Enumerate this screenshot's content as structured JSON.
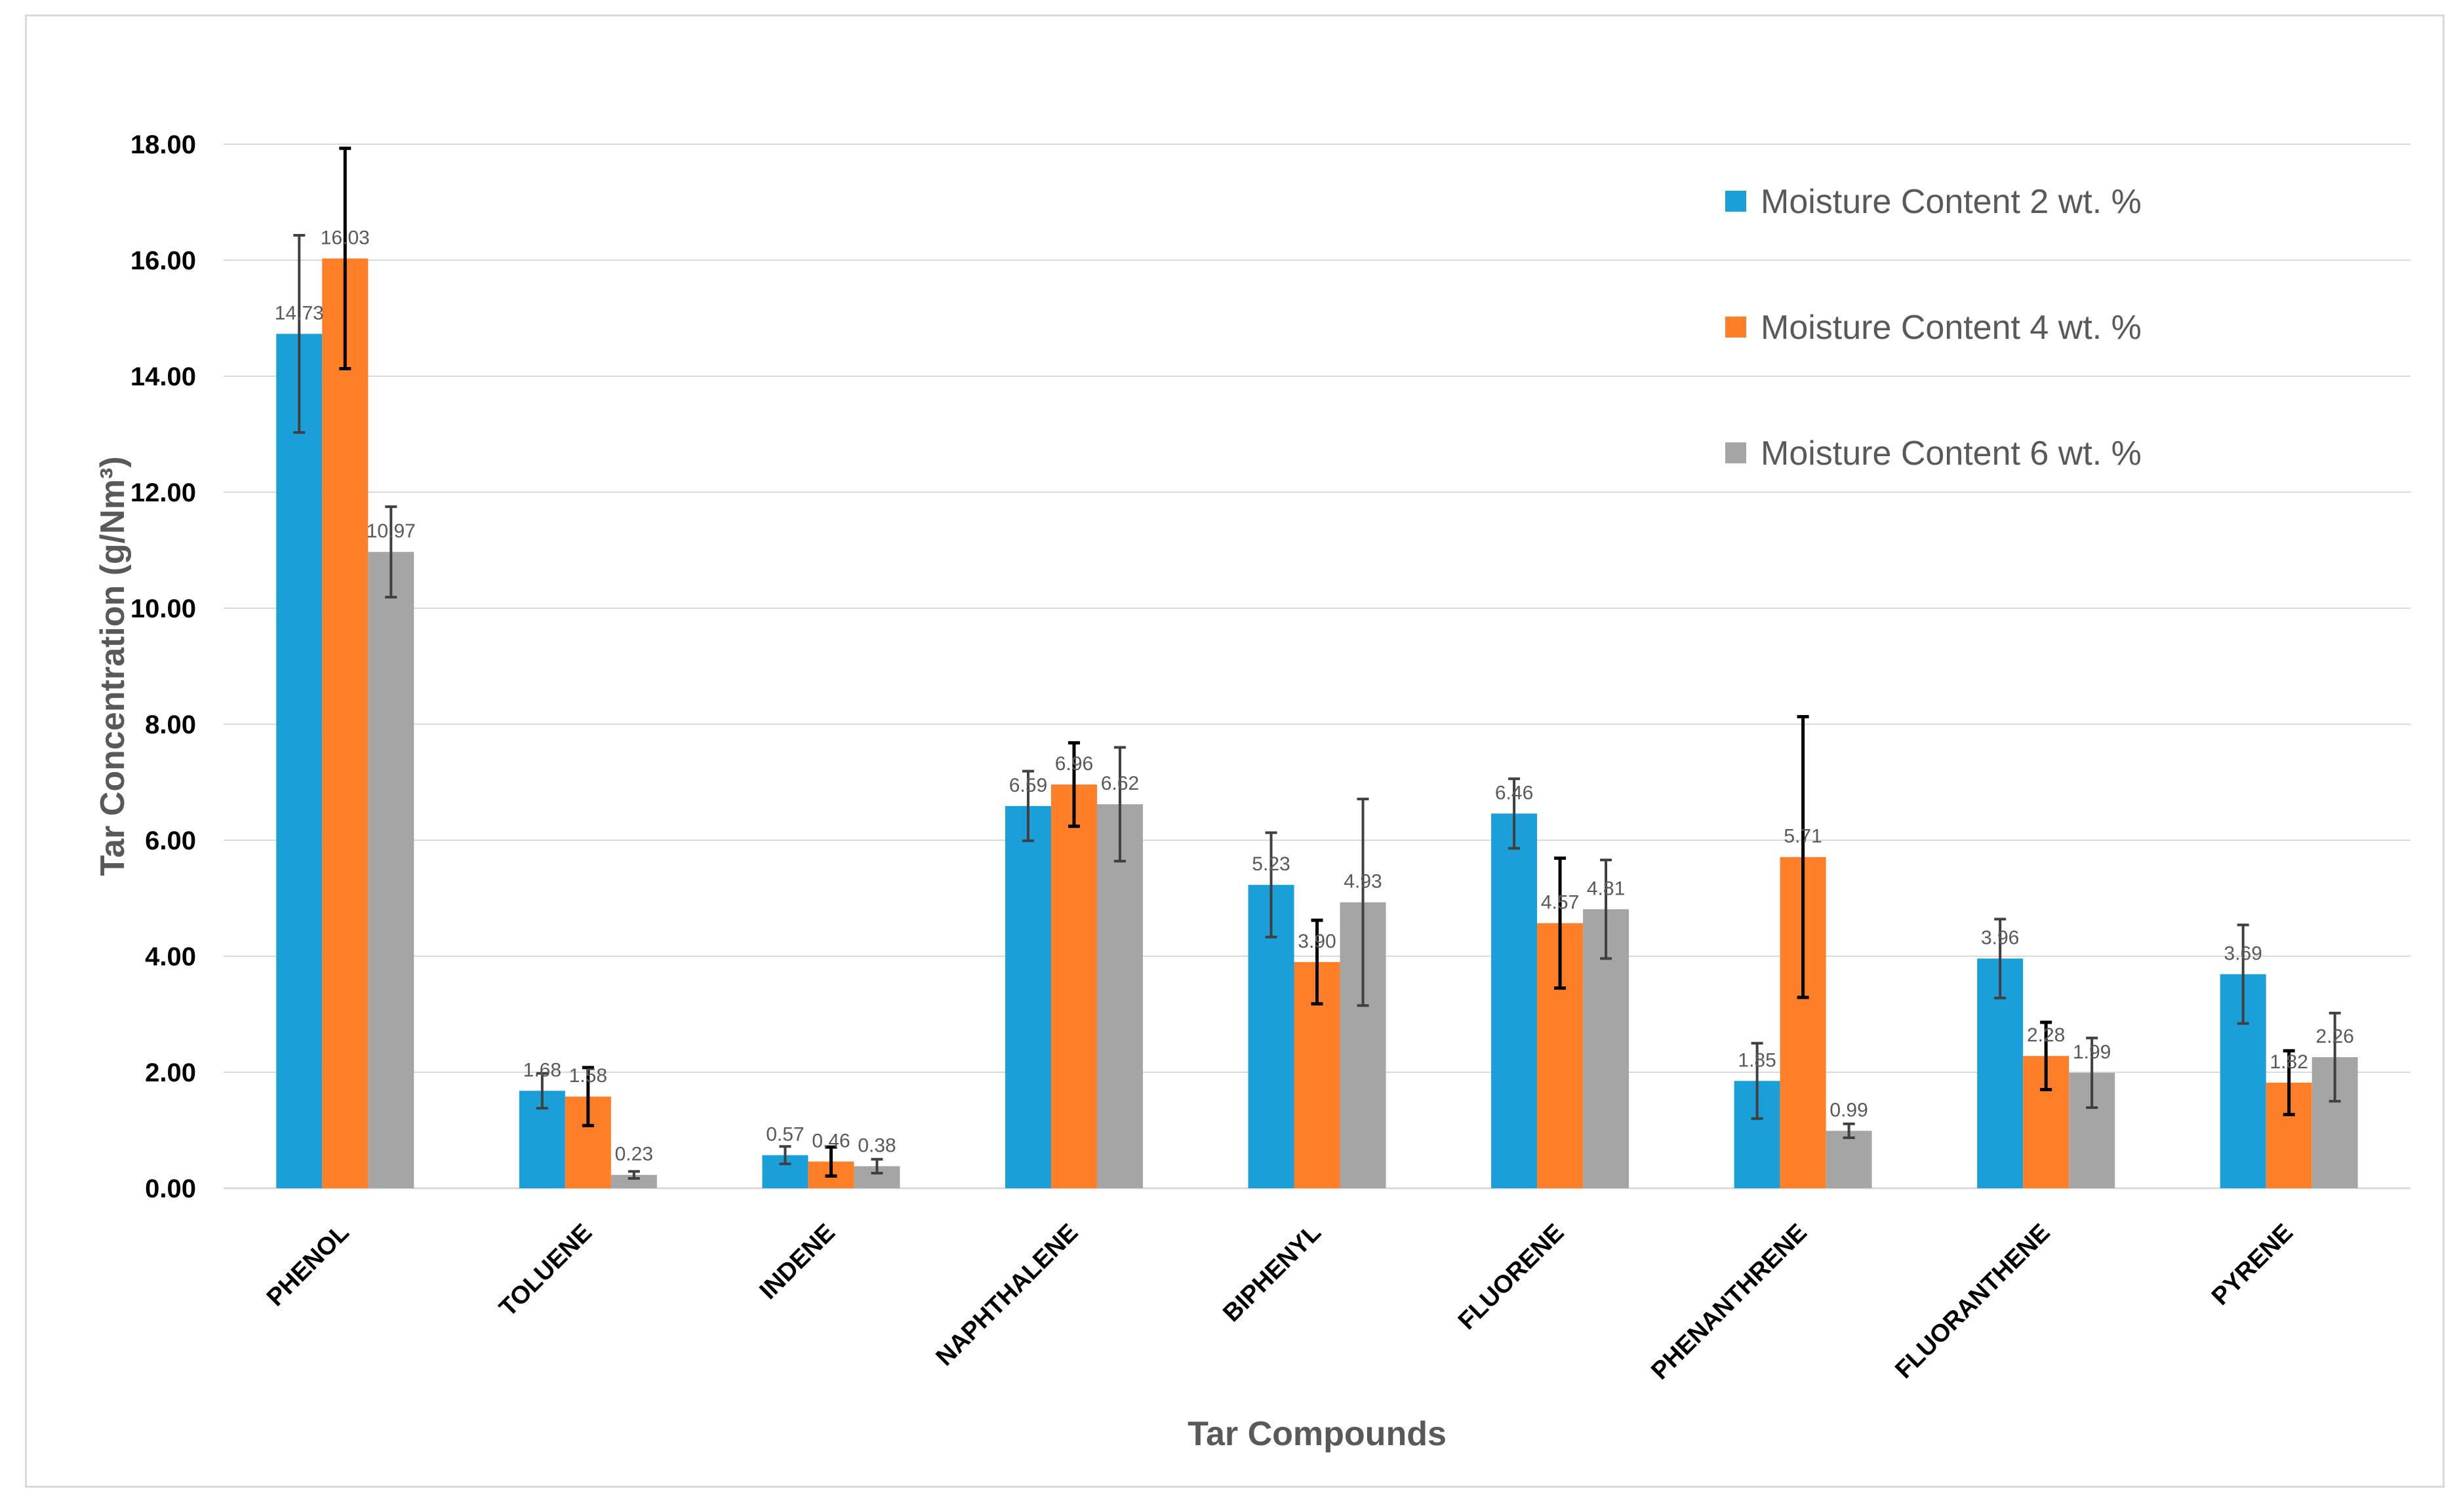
{
  "chart_data": {
    "type": "bar",
    "xlabel": "Tar Compounds",
    "ylabel": "Tar  Concentration (g/Nm³)",
    "ylim": [
      0,
      18
    ],
    "yticks": [
      "0.00",
      "2.00",
      "4.00",
      "6.00",
      "8.00",
      "10.00",
      "12.00",
      "14.00",
      "16.00",
      "18.00"
    ],
    "grid": true,
    "legend_position": "top-right",
    "categories": [
      "PHENOL",
      "TOLUENE",
      "INDENE",
      "NAPHTHALENE",
      "BIPHENYL",
      "FLUORENE",
      "PHENANTHRENE",
      "FLUORANTHENE",
      "PYRENE"
    ],
    "series": [
      {
        "name": "Moisture Content 2 wt. %",
        "color": "#1a9fd9",
        "values": [
          14.73,
          1.68,
          0.57,
          6.59,
          5.23,
          6.46,
          1.85,
          3.96,
          3.69
        ],
        "labels": [
          "14.73",
          "1.68",
          "0.57",
          "6.59",
          "5.23",
          "6.46",
          "1.85",
          "3.96",
          "3.69"
        ],
        "errors": [
          1.7,
          0.3,
          0.15,
          0.6,
          0.9,
          0.6,
          0.65,
          0.68,
          0.85
        ],
        "error_color": "#404040"
      },
      {
        "name": "Moisture Content 4 wt. %",
        "color": "#fe7f27",
        "values": [
          16.03,
          1.58,
          0.46,
          6.96,
          3.9,
          4.57,
          5.71,
          2.28,
          1.82
        ],
        "labels": [
          "16.03",
          "1.58",
          "0.46",
          "6.96",
          "3.90",
          "4.57",
          "5.71",
          "2.28",
          "1.82"
        ],
        "errors": [
          1.9,
          0.5,
          0.25,
          0.72,
          0.72,
          1.12,
          2.42,
          0.58,
          0.55
        ],
        "error_color": "#000000"
      },
      {
        "name": "Moisture Content 6 wt. %",
        "color": "#a5a5a5",
        "values": [
          10.97,
          0.23,
          0.38,
          6.62,
          4.93,
          4.81,
          0.99,
          1.99,
          2.26
        ],
        "labels": [
          "10.97",
          "0.23",
          "0.38",
          "6.62",
          "4.93",
          "4.81",
          "0.99",
          "1.99",
          "2.26"
        ],
        "errors": [
          0.78,
          0.06,
          0.12,
          0.98,
          1.78,
          0.85,
          0.12,
          0.6,
          0.76
        ],
        "error_color": "#404040"
      }
    ]
  }
}
